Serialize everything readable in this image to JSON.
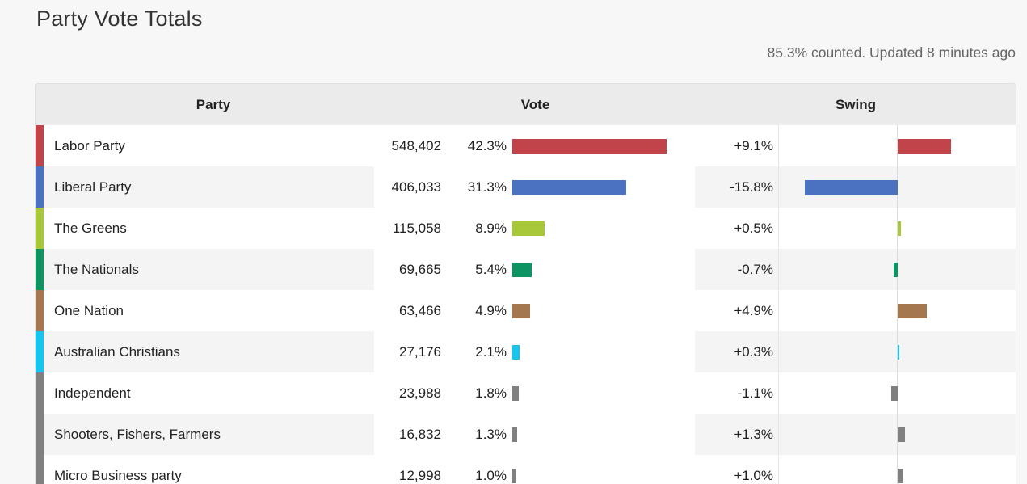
{
  "page": {
    "title": "Party Vote Totals",
    "status": "85.3% counted. Updated 8 minutes ago"
  },
  "table": {
    "headers": {
      "party": "Party",
      "vote": "Vote",
      "swing": "Swing"
    },
    "rows": [
      {
        "party": "Labor Party",
        "votes": "548,402",
        "pct": "42.3%",
        "pct_value": 42.3,
        "swing": "+9.1%",
        "swing_value": 9.1,
        "color": "#c0444a"
      },
      {
        "party": "Liberal Party",
        "votes": "406,033",
        "pct": "31.3%",
        "pct_value": 31.3,
        "swing": "-15.8%",
        "swing_value": -15.8,
        "color": "#4a72c0"
      },
      {
        "party": "The Greens",
        "votes": "115,058",
        "pct": "8.9%",
        "pct_value": 8.9,
        "swing": "+0.5%",
        "swing_value": 0.5,
        "color": "#a8c83a"
      },
      {
        "party": "The Nationals",
        "votes": "69,665",
        "pct": "5.4%",
        "pct_value": 5.4,
        "swing": "-0.7%",
        "swing_value": -0.7,
        "color": "#0e9463"
      },
      {
        "party": "One Nation",
        "votes": "63,466",
        "pct": "4.9%",
        "pct_value": 4.9,
        "swing": "+4.9%",
        "swing_value": 4.9,
        "color": "#a5774f"
      },
      {
        "party": "Australian Christians",
        "votes": "27,176",
        "pct": "2.1%",
        "pct_value": 2.1,
        "swing": "+0.3%",
        "swing_value": 0.3,
        "color": "#16c4ee"
      },
      {
        "party": "Independent",
        "votes": "23,988",
        "pct": "1.8%",
        "pct_value": 1.8,
        "swing": "-1.1%",
        "swing_value": -1.1,
        "color": "#808080"
      },
      {
        "party": "Shooters, Fishers, Farmers",
        "votes": "16,832",
        "pct": "1.3%",
        "pct_value": 1.3,
        "swing": "+1.3%",
        "swing_value": 1.3,
        "color": "#808080"
      },
      {
        "party": "Micro Business party",
        "votes": "12,998",
        "pct": "1.0%",
        "pct_value": 1.0,
        "swing": "+1.0%",
        "swing_value": 1.0,
        "color": "#808080"
      }
    ]
  }
}
